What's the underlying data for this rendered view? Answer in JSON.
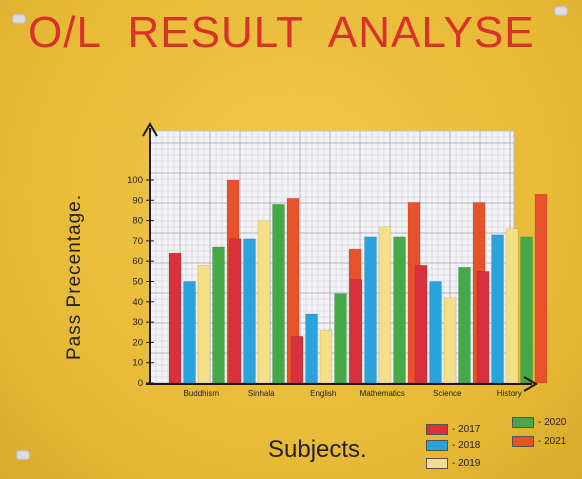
{
  "poster": {
    "title": "O/L RESULT ANALYSE"
  },
  "chart_data": {
    "type": "bar",
    "title": "O/L RESULT ANALYSE",
    "xlabel": "Subjects.",
    "ylabel": "Pass Precentage.",
    "ylim": [
      0,
      100
    ],
    "yticks": [
      0,
      10,
      20,
      30,
      40,
      50,
      60,
      70,
      80,
      90,
      100
    ],
    "grid": true,
    "legend_position": "bottom-right",
    "categories": [
      "Buddhism",
      "Sinhala",
      "English",
      "Mathematics",
      "Science",
      "History"
    ],
    "series": [
      {
        "name": "2017",
        "color": "#d8313c",
        "values": [
          64,
          71,
          23,
          51,
          58,
          55
        ]
      },
      {
        "name": "2018",
        "color": "#2aa3dc",
        "values": [
          50,
          71,
          34,
          72,
          50,
          73
        ]
      },
      {
        "name": "2019",
        "color": "#f4de86",
        "values": [
          58,
          80,
          26,
          77,
          42,
          76
        ]
      },
      {
        "name": "2020",
        "color": "#46a947",
        "values": [
          67,
          88,
          44,
          72,
          57,
          72
        ]
      },
      {
        "name": "2021",
        "color": "#e8522b",
        "values": [
          100,
          91,
          66,
          89,
          89,
          93
        ]
      }
    ]
  },
  "legend": {
    "items": [
      {
        "label": "- 2017",
        "color": "#d8313c"
      },
      {
        "label": "- 2018",
        "color": "#2aa3dc"
      },
      {
        "label": "- 2019",
        "color": "#f4de86"
      },
      {
        "label": "- 2020",
        "color": "#46a947"
      },
      {
        "label": "- 2021",
        "color": "#e8522b"
      }
    ]
  }
}
